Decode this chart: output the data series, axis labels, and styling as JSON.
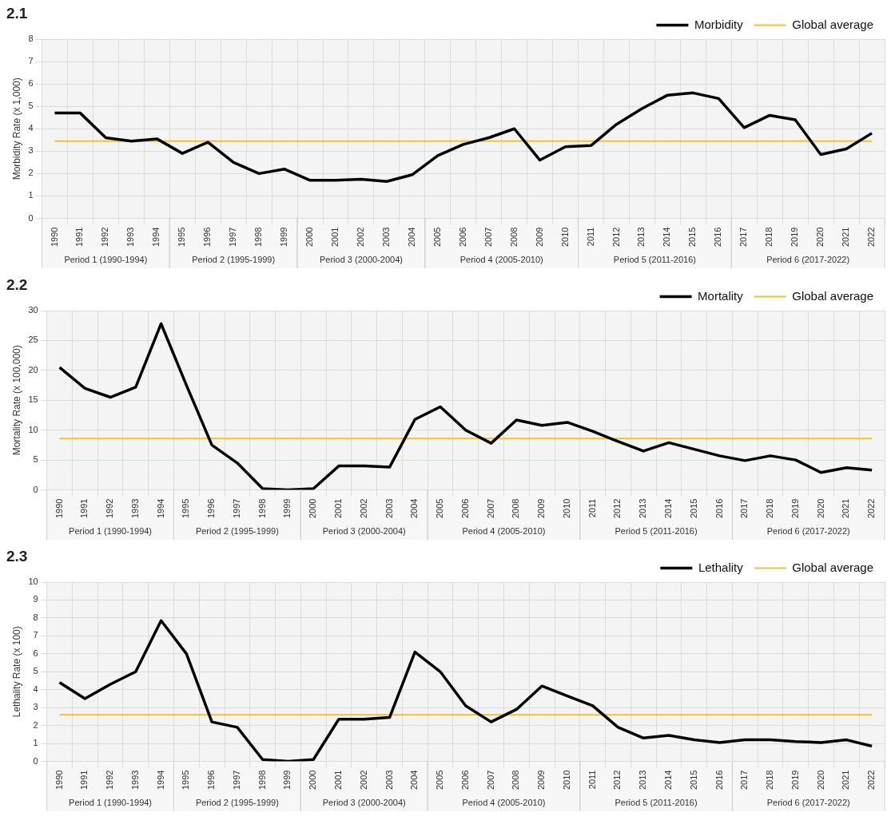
{
  "chart_data": [
    {
      "type": "line",
      "title": "2.1",
      "ylabel": "Morbidity Rate (x 1,000)",
      "categories": [
        "1990",
        "1991",
        "1992",
        "1993",
        "1994",
        "1995",
        "1996",
        "1997",
        "1998",
        "1999",
        "2000",
        "2001",
        "2002",
        "2003",
        "2004",
        "2005",
        "2006",
        "2007",
        "2008",
        "2009",
        "2010",
        "2011",
        "2012",
        "2013",
        "2014",
        "2015",
        "2016",
        "2017",
        "2018",
        "2019",
        "2020",
        "2021",
        "2022"
      ],
      "series": [
        {
          "name": "Morbidity",
          "color": "#000000",
          "values": [
            4.7,
            4.7,
            3.6,
            3.45,
            3.55,
            2.9,
            3.4,
            2.5,
            2.0,
            2.2,
            1.7,
            1.7,
            1.75,
            1.65,
            1.95,
            2.8,
            3.3,
            3.6,
            4.0,
            2.6,
            3.2,
            3.25,
            4.2,
            4.9,
            5.5,
            5.6,
            5.35,
            4.05,
            4.6,
            4.4,
            2.85,
            3.1,
            3.8
          ]
        },
        {
          "name": "Global average",
          "color": "#f2c12e",
          "values": [
            3.45,
            3.45,
            3.45,
            3.45,
            3.45,
            3.45,
            3.45,
            3.45,
            3.45,
            3.45,
            3.45,
            3.45,
            3.45,
            3.45,
            3.45,
            3.45,
            3.45,
            3.45,
            3.45,
            3.45,
            3.45,
            3.45,
            3.45,
            3.45,
            3.45,
            3.45,
            3.45,
            3.45,
            3.45,
            3.45,
            3.45,
            3.45,
            3.45
          ]
        }
      ],
      "bands": [
        {
          "axis": "x",
          "from": "1990",
          "to": "1994",
          "label": "Period 1 (1990-1994)",
          "color": "#f2f2f2"
        },
        {
          "axis": "x",
          "from": "1995",
          "to": "1999",
          "label": "Period 2 (1995-1999)",
          "color": "#f2f2f2"
        },
        {
          "axis": "x",
          "from": "2000",
          "to": "2004",
          "label": "Period 3 (2000-2004)",
          "color": "#f2f2f2"
        },
        {
          "axis": "x",
          "from": "2005",
          "to": "2010",
          "label": "Period 4 (2005-2010)",
          "color": "#f2f2f2"
        },
        {
          "axis": "x",
          "from": "2011",
          "to": "2016",
          "label": "Period 5 (2011-2016)",
          "color": "#f2f2f2"
        },
        {
          "axis": "x",
          "from": "2017",
          "to": "2022",
          "label": "Period 6 (2017-2022)",
          "color": "#f2f2f2"
        }
      ],
      "ylim": [
        0,
        8
      ],
      "yticks": [
        0,
        1,
        2,
        3,
        4,
        5,
        6,
        7,
        8
      ],
      "grid": true,
      "legend": "top right",
      "marker": "none",
      "line_style": "solid"
    },
    {
      "type": "line",
      "title": "2.2",
      "ylabel": "Mortality Rate (x 100,000)",
      "categories": [
        "1990",
        "1991",
        "1992",
        "1993",
        "1994",
        "1995",
        "1996",
        "1997",
        "1998",
        "1999",
        "2000",
        "2001",
        "2002",
        "2003",
        "2004",
        "2005",
        "2006",
        "2007",
        "2008",
        "2009",
        "2010",
        "2011",
        "2012",
        "2013",
        "2014",
        "2015",
        "2016",
        "2017",
        "2018",
        "2019",
        "2020",
        "2021",
        "2022"
      ],
      "series": [
        {
          "name": "Mortality",
          "color": "#000000",
          "values": [
            20.5,
            17,
            15.5,
            17.2,
            27.8,
            17.5,
            7.5,
            4.5,
            0.2,
            0,
            0.2,
            4,
            4,
            3.8,
            11.8,
            13.9,
            10,
            7.8,
            11.7,
            10.8,
            11.3,
            9.8,
            8.1,
            6.5,
            7.9,
            6.8,
            5.7,
            4.9,
            5.7,
            5,
            2.9,
            3.7,
            3.3
          ]
        },
        {
          "name": "Global average",
          "color": "#f2c12e",
          "values": [
            8.6,
            8.6,
            8.6,
            8.6,
            8.6,
            8.6,
            8.6,
            8.6,
            8.6,
            8.6,
            8.6,
            8.6,
            8.6,
            8.6,
            8.6,
            8.6,
            8.6,
            8.6,
            8.6,
            8.6,
            8.6,
            8.6,
            8.6,
            8.6,
            8.6,
            8.6,
            8.6,
            8.6,
            8.6,
            8.6,
            8.6,
            8.6,
            8.6
          ]
        }
      ],
      "bands": [
        {
          "axis": "x",
          "from": "1990",
          "to": "1994",
          "label": "Period 1 (1990-1994)",
          "color": "#f2f2f2"
        },
        {
          "axis": "x",
          "from": "1995",
          "to": "1999",
          "label": "Period 2 (1995-1999)",
          "color": "#f2f2f2"
        },
        {
          "axis": "x",
          "from": "2000",
          "to": "2004",
          "label": "Period 3 (2000-2004)",
          "color": "#f2f2f2"
        },
        {
          "axis": "x",
          "from": "2005",
          "to": "2010",
          "label": "Period 4 (2005-2010)",
          "color": "#f2f2f2"
        },
        {
          "axis": "x",
          "from": "2011",
          "to": "2016",
          "label": "Period 5 (2011-2016)",
          "color": "#f2f2f2"
        },
        {
          "axis": "x",
          "from": "2017",
          "to": "2022",
          "label": "Period 6 (2017-2022)",
          "color": "#f2f2f2"
        }
      ],
      "ylim": [
        0,
        30
      ],
      "yticks": [
        0,
        5,
        10,
        15,
        20,
        25,
        30
      ],
      "grid": true,
      "legend": "top right",
      "marker": "none",
      "line_style": "solid"
    },
    {
      "type": "line",
      "title": "2.3",
      "ylabel": "Lethality Rate (x 100)",
      "categories": [
        "1990",
        "1991",
        "1992",
        "1993",
        "1994",
        "1995",
        "1996",
        "1997",
        "1998",
        "1999",
        "2000",
        "2001",
        "2002",
        "2003",
        "2004",
        "2005",
        "2006",
        "2007",
        "2008",
        "2009",
        "2010",
        "2011",
        "2012",
        "2013",
        "2014",
        "2015",
        "2016",
        "2017",
        "2018",
        "2019",
        "2020",
        "2021",
        "2022"
      ],
      "series": [
        {
          "name": "Lethality",
          "color": "#000000",
          "values": [
            4.4,
            3.5,
            4.3,
            5.0,
            7.85,
            6.0,
            2.2,
            1.9,
            0.1,
            0,
            0.1,
            2.35,
            2.35,
            2.45,
            6.1,
            5.0,
            3.1,
            2.2,
            2.9,
            4.2,
            3.65,
            3.1,
            1.9,
            1.3,
            1.45,
            1.2,
            1.05,
            1.2,
            1.2,
            1.1,
            1.05,
            1.2,
            0.85
          ]
        },
        {
          "name": "Global average",
          "color": "#f2c12e",
          "values": [
            2.6,
            2.6,
            2.6,
            2.6,
            2.6,
            2.6,
            2.6,
            2.6,
            2.6,
            2.6,
            2.6,
            2.6,
            2.6,
            2.6,
            2.6,
            2.6,
            2.6,
            2.6,
            2.6,
            2.6,
            2.6,
            2.6,
            2.6,
            2.6,
            2.6,
            2.6,
            2.6,
            2.6,
            2.6,
            2.6,
            2.6,
            2.6,
            2.6
          ]
        }
      ],
      "bands": [
        {
          "axis": "x",
          "from": "1990",
          "to": "1994",
          "label": "Period 1 (1990-1994)",
          "color": "#f2f2f2"
        },
        {
          "axis": "x",
          "from": "1995",
          "to": "1999",
          "label": "Period 2 (1995-1999)",
          "color": "#f2f2f2"
        },
        {
          "axis": "x",
          "from": "2000",
          "to": "2004",
          "label": "Period 3 (2000-2004)",
          "color": "#f2f2f2"
        },
        {
          "axis": "x",
          "from": "2005",
          "to": "2010",
          "label": "Period 4 (2005-2010)",
          "color": "#f2f2f2"
        },
        {
          "axis": "x",
          "from": "2011",
          "to": "2016",
          "label": "Period 5 (2011-2016)",
          "color": "#f2f2f2"
        },
        {
          "axis": "x",
          "from": "2017",
          "to": "2022",
          "label": "Period 6 (2017-2022)",
          "color": "#f2f2f2"
        }
      ],
      "ylim": [
        0,
        10
      ],
      "yticks": [
        0,
        1,
        2,
        3,
        4,
        5,
        6,
        7,
        8,
        9,
        10
      ],
      "grid": true,
      "legend": "top right",
      "marker": "none",
      "line_style": "solid"
    }
  ]
}
